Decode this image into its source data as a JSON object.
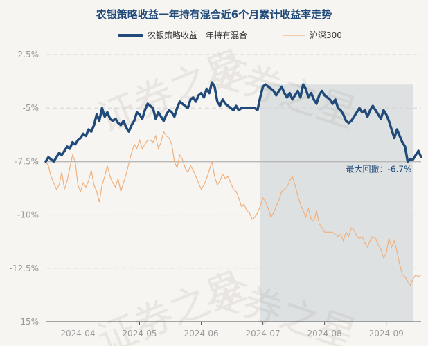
{
  "chart_data": {
    "type": "line",
    "title": "农银策略收益一年持有混合近6个月累计收益率走势",
    "ylim": [
      -15,
      -2.5
    ],
    "yticks": [
      -2.5,
      -5,
      -7.5,
      -10,
      -12.5,
      -15
    ],
    "ytick_labels": [
      "-2.5%",
      "-5%",
      "-7.5%",
      "-10%",
      "-12.5%",
      "-15%"
    ],
    "xtick_labels": [
      "2024-04",
      "2024-05",
      "2024-06",
      "2024-07",
      "2024-08",
      "2024-09"
    ],
    "xtick_positions": [
      12,
      35,
      58,
      81,
      104,
      127
    ],
    "x_count": 141,
    "drawdown": {
      "start_index": 80,
      "end_index": 137,
      "reference_value": -7.5,
      "label": "最大回撤：-6.7%"
    },
    "series": [
      {
        "name": "农银策略收益一年持有混合",
        "color": "#1f4a7a",
        "values": [
          -7.5,
          -7.3,
          -7.4,
          -7.5,
          -7.3,
          -7.1,
          -7.2,
          -7.0,
          -6.8,
          -6.9,
          -6.6,
          -6.7,
          -6.5,
          -6.4,
          -6.2,
          -6.3,
          -6.0,
          -6.1,
          -5.8,
          -5.3,
          -5.6,
          -5.0,
          -5.4,
          -5.2,
          -5.5,
          -5.6,
          -5.5,
          -5.7,
          -5.8,
          -5.6,
          -5.9,
          -6.1,
          -5.8,
          -5.6,
          -5.2,
          -5.3,
          -5.5,
          -5.1,
          -4.8,
          -4.9,
          -5.0,
          -5.5,
          -5.2,
          -5.4,
          -5.6,
          -5.3,
          -5.1,
          -5.2,
          -5.4,
          -5.0,
          -4.7,
          -4.8,
          -4.9,
          -5.0,
          -4.6,
          -4.5,
          -4.7,
          -4.4,
          -4.3,
          -4.5,
          -4.1,
          -4.3,
          -3.8,
          -4.0,
          -4.7,
          -4.9,
          -4.6,
          -4.8,
          -4.9,
          -5.0,
          -5.1,
          -4.9,
          -5.1,
          -5.0,
          -5.0,
          -5.0,
          -5.0,
          -5.0,
          -5.0,
          -5.1,
          -4.5,
          -4.0,
          -3.9,
          -4.0,
          -4.1,
          -4.2,
          -4.4,
          -4.2,
          -4.0,
          -4.3,
          -4.5,
          -4.3,
          -4.6,
          -4.4,
          -4.2,
          -4.5,
          -3.9,
          -4.1,
          -4.5,
          -4.3,
          -4.6,
          -4.8,
          -4.4,
          -4.2,
          -4.4,
          -4.5,
          -4.6,
          -4.8,
          -4.6,
          -5.0,
          -5.1,
          -5.3,
          -5.6,
          -5.7,
          -5.6,
          -5.4,
          -5.2,
          -5.0,
          -5.2,
          -5.1,
          -5.4,
          -5.1,
          -4.9,
          -5.1,
          -5.3,
          -5.5,
          -5.1,
          -5.3,
          -5.6,
          -6.0,
          -6.4,
          -6.0,
          -6.3,
          -6.6,
          -6.8,
          -7.5,
          -7.4,
          -7.4,
          -7.2,
          -7.0,
          -7.3
        ]
      },
      {
        "name": "沪深300",
        "color": "#f0b07e",
        "values": [
          -7.5,
          -7.7,
          -8.2,
          -8.5,
          -8.8,
          -8.6,
          -8.0,
          -8.8,
          -8.4,
          -7.8,
          -7.2,
          -7.5,
          -8.6,
          -8.9,
          -8.5,
          -8.7,
          -8.4,
          -7.9,
          -8.6,
          -8.9,
          -9.4,
          -8.6,
          -8.2,
          -7.7,
          -8.2,
          -8.5,
          -8.7,
          -8.3,
          -8.9,
          -8.5,
          -8.1,
          -7.6,
          -7.1,
          -6.7,
          -6.9,
          -6.5,
          -6.9,
          -6.7,
          -6.5,
          -6.5,
          -6.6,
          -6.3,
          -6.9,
          -6.6,
          -6.1,
          -6.3,
          -6.4,
          -6.7,
          -7.5,
          -7.8,
          -7.2,
          -7.4,
          -7.8,
          -8.0,
          -7.7,
          -7.9,
          -8.2,
          -8.5,
          -8.8,
          -8.6,
          -8.3,
          -7.9,
          -7.5,
          -8.2,
          -8.6,
          -8.4,
          -8.1,
          -8.3,
          -8.2,
          -8.5,
          -8.8,
          -8.9,
          -9.2,
          -9.6,
          -9.5,
          -9.8,
          -9.9,
          -10.2,
          -10.1,
          -9.9,
          -9.6,
          -9.2,
          -9.4,
          -9.7,
          -10.1,
          -9.9,
          -9.6,
          -9.3,
          -8.9,
          -8.8,
          -8.7,
          -8.4,
          -8.2,
          -8.6,
          -9.1,
          -9.5,
          -9.8,
          -10.1,
          -9.7,
          -10.2,
          -10.3,
          -9.8,
          -10.4,
          -10.6,
          -10.8,
          -10.8,
          -10.8,
          -10.8,
          -10.9,
          -11.0,
          -10.9,
          -11.2,
          -10.8,
          -11.0,
          -10.6,
          -10.7,
          -11.0,
          -11.1,
          -11.0,
          -11.3,
          -11.5,
          -11.2,
          -11.0,
          -11.1,
          -11.4,
          -11.6,
          -12.0,
          -11.8,
          -11.1,
          -11.5,
          -11.2,
          -11.7,
          -12.3,
          -12.8,
          -12.9,
          -13.1,
          -13.3,
          -13.0,
          -12.8,
          -12.9,
          -12.8
        ]
      }
    ]
  },
  "watermark": "证券之星"
}
